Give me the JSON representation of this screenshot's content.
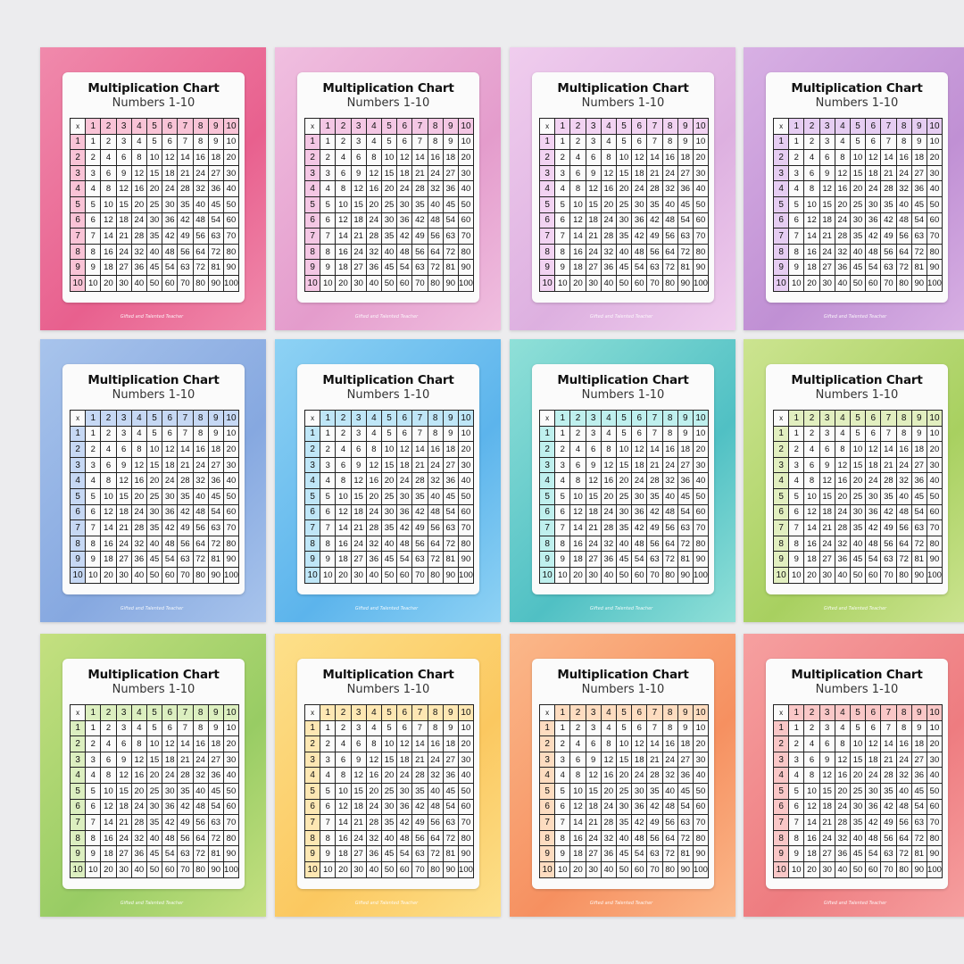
{
  "chart": {
    "title": "Multiplication Chart",
    "subtitle": "Numbers 1-10",
    "corner": "x",
    "headers": [
      "1",
      "2",
      "3",
      "4",
      "5",
      "6",
      "7",
      "8",
      "9",
      "10"
    ],
    "rows": [
      [
        "1",
        "2",
        "3",
        "4",
        "5",
        "6",
        "7",
        "8",
        "9",
        "10"
      ],
      [
        "2",
        "4",
        "6",
        "8",
        "10",
        "12",
        "14",
        "16",
        "18",
        "20"
      ],
      [
        "3",
        "6",
        "9",
        "12",
        "15",
        "18",
        "21",
        "24",
        "27",
        "30"
      ],
      [
        "4",
        "8",
        "12",
        "16",
        "20",
        "24",
        "28",
        "32",
        "36",
        "40"
      ],
      [
        "5",
        "10",
        "15",
        "20",
        "25",
        "30",
        "35",
        "40",
        "45",
        "50"
      ],
      [
        "6",
        "12",
        "18",
        "24",
        "30",
        "36",
        "42",
        "48",
        "54",
        "60"
      ],
      [
        "7",
        "14",
        "21",
        "28",
        "35",
        "42",
        "49",
        "56",
        "63",
        "70"
      ],
      [
        "8",
        "16",
        "24",
        "32",
        "40",
        "48",
        "56",
        "64",
        "72",
        "80"
      ],
      [
        "9",
        "18",
        "27",
        "36",
        "45",
        "54",
        "63",
        "72",
        "81",
        "90"
      ],
      [
        "10",
        "20",
        "30",
        "40",
        "50",
        "60",
        "70",
        "80",
        "90",
        "100"
      ]
    ],
    "logo_text": "Gifted and Talented Teacher"
  },
  "cards": [
    {
      "theme": "pink",
      "bg": [
        "#f08aac",
        "#e8608e"
      ],
      "header": "#f9c3d6"
    },
    {
      "theme": "light-pink",
      "bg": [
        "#f0bfe0",
        "#e49ccc"
      ],
      "header": "#f4c7e4"
    },
    {
      "theme": "lavender-pink",
      "bg": [
        "#f0cdee",
        "#ddb0e0"
      ],
      "header": "#f2d3f2"
    },
    {
      "theme": "purple",
      "bg": [
        "#d8b0e4",
        "#c090d4"
      ],
      "header": "#e6cdf2"
    },
    {
      "theme": "blue",
      "bg": [
        "#a8c4ec",
        "#86a8e0"
      ],
      "header": "#c6d8f4"
    },
    {
      "theme": "sky-blue",
      "bg": [
        "#8ed2f4",
        "#5cb4ec"
      ],
      "header": "#bfe6f7"
    },
    {
      "theme": "teal",
      "bg": [
        "#90e0d8",
        "#50c0c4"
      ],
      "header": "#bff0ee"
    },
    {
      "theme": "lime",
      "bg": [
        "#cce490",
        "#a8d060"
      ],
      "header": "#e2efc0"
    },
    {
      "theme": "green",
      "bg": [
        "#c4e080",
        "#98cc64"
      ],
      "header": "#dcefc0"
    },
    {
      "theme": "yellow",
      "bg": [
        "#fde08a",
        "#fbc860"
      ],
      "header": "#fde7b3"
    },
    {
      "theme": "orange",
      "bg": [
        "#fbb88a",
        "#f69060"
      ],
      "header": "#fddcc0"
    },
    {
      "theme": "coral",
      "bg": [
        "#f6a0a0",
        "#ee7c80"
      ],
      "header": "#f9c7c7"
    }
  ]
}
